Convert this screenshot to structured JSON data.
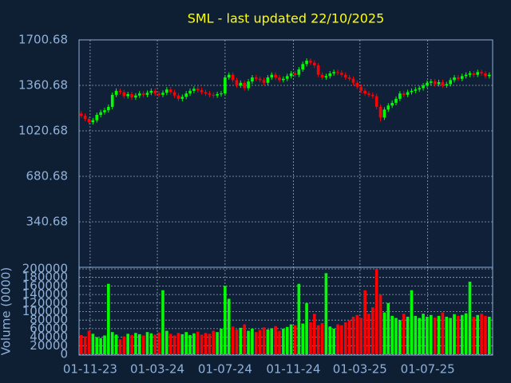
{
  "chart_data": {
    "type": "candlestick",
    "title": "SML - last updated 22/10/2025",
    "volume_label": "Volume (0000)",
    "up_color": "#00ff00",
    "down_color": "#ff0000",
    "grid": true,
    "xlim": [
      "2023-10-12",
      "2025-10-26"
    ],
    "xticks": [
      {
        "value": "2023-11-01",
        "label": "01-11-23"
      },
      {
        "value": "2024-03-01",
        "label": "01-03-24"
      },
      {
        "value": "2024-07-01",
        "label": "01-07-24"
      },
      {
        "value": "2024-11-01",
        "label": "01-11-24"
      },
      {
        "value": "2025-03-01",
        "label": "01-03-25"
      },
      {
        "value": "2025-07-01",
        "label": "01-07-25"
      }
    ],
    "ylim": [
      0.68,
      1700.68
    ],
    "yticks": [
      340.68,
      680.68,
      1020.68,
      1360.68,
      1700.68
    ],
    "volume_ylim": [
      0,
      200000
    ],
    "volume_yticks": [
      0,
      20000,
      40000,
      60000,
      80000,
      100000,
      120000,
      140000,
      160000,
      180000,
      200000
    ],
    "dates": [
      "2023-10-16",
      "2023-10-23",
      "2023-10-30",
      "2023-11-06",
      "2023-11-13",
      "2023-11-20",
      "2023-11-27",
      "2023-12-04",
      "2023-12-11",
      "2023-12-18",
      "2023-12-25",
      "2024-01-01",
      "2024-01-08",
      "2024-01-15",
      "2024-01-22",
      "2024-01-29",
      "2024-02-05",
      "2024-02-12",
      "2024-02-19",
      "2024-02-26",
      "2024-03-04",
      "2024-03-11",
      "2024-03-18",
      "2024-03-25",
      "2024-04-01",
      "2024-04-08",
      "2024-04-15",
      "2024-04-22",
      "2024-04-29",
      "2024-05-06",
      "2024-05-13",
      "2024-05-20",
      "2024-05-27",
      "2024-06-03",
      "2024-06-10",
      "2024-06-17",
      "2024-06-24",
      "2024-07-01",
      "2024-07-08",
      "2024-07-15",
      "2024-07-22",
      "2024-07-29",
      "2024-08-05",
      "2024-08-12",
      "2024-08-19",
      "2024-08-26",
      "2024-09-02",
      "2024-09-09",
      "2024-09-16",
      "2024-09-23",
      "2024-09-30",
      "2024-10-07",
      "2024-10-14",
      "2024-10-21",
      "2024-10-28",
      "2024-11-04",
      "2024-11-11",
      "2024-11-18",
      "2024-11-25",
      "2024-12-02",
      "2024-12-09",
      "2024-12-16",
      "2024-12-23",
      "2024-12-30",
      "2025-01-06",
      "2025-01-13",
      "2025-01-20",
      "2025-01-27",
      "2025-02-03",
      "2025-02-10",
      "2025-02-17",
      "2025-02-24",
      "2025-03-03",
      "2025-03-10",
      "2025-03-17",
      "2025-03-24",
      "2025-03-31",
      "2025-04-07",
      "2025-04-14",
      "2025-04-21",
      "2025-04-28",
      "2025-05-05",
      "2025-05-12",
      "2025-05-19",
      "2025-05-26",
      "2025-06-02",
      "2025-06-09",
      "2025-06-16",
      "2025-06-23",
      "2025-06-30",
      "2025-07-07",
      "2025-07-14",
      "2025-07-21",
      "2025-07-28",
      "2025-08-04",
      "2025-08-11",
      "2025-08-18",
      "2025-08-25",
      "2025-09-01",
      "2025-09-08",
      "2025-09-15",
      "2025-09-22",
      "2025-09-29",
      "2025-10-06",
      "2025-10-13",
      "2025-10-20"
    ],
    "open": [
      1150,
      1134,
      1110,
      1085,
      1100,
      1140,
      1160,
      1175,
      1200,
      1290,
      1320,
      1310,
      1280,
      1295,
      1270,
      1285,
      1300,
      1290,
      1305,
      1320,
      1300,
      1290,
      1305,
      1330,
      1310,
      1285,
      1260,
      1275,
      1300,
      1320,
      1335,
      1325,
      1310,
      1300,
      1290,
      1285,
      1295,
      1300,
      1420,
      1440,
      1400,
      1360,
      1380,
      1340,
      1390,
      1420,
      1410,
      1400,
      1380,
      1420,
      1440,
      1420,
      1400,
      1410,
      1430,
      1450,
      1440,
      1480,
      1520,
      1545,
      1530,
      1510,
      1440,
      1420,
      1430,
      1450,
      1460,
      1455,
      1440,
      1420,
      1410,
      1380,
      1350,
      1320,
      1300,
      1290,
      1280,
      1200,
      1120,
      1180,
      1210,
      1230,
      1260,
      1300,
      1290,
      1310,
      1320,
      1330,
      1340,
      1360,
      1380,
      1390,
      1370,
      1385,
      1360,
      1370,
      1400,
      1420,
      1410,
      1430,
      1440,
      1450,
      1440,
      1460,
      1450,
      1430
    ],
    "high": [
      1168,
      1152,
      1128,
      1118,
      1158,
      1178,
      1193,
      1218,
      1308,
      1338,
      1338,
      1328,
      1313,
      1313,
      1303,
      1318,
      1318,
      1323,
      1338,
      1338,
      1318,
      1323,
      1348,
      1348,
      1328,
      1303,
      1293,
      1318,
      1338,
      1353,
      1353,
      1343,
      1328,
      1318,
      1308,
      1313,
      1318,
      1438,
      1458,
      1458,
      1418,
      1398,
      1398,
      1408,
      1438,
      1438,
      1428,
      1418,
      1438,
      1458,
      1458,
      1438,
      1428,
      1448,
      1468,
      1468,
      1498,
      1538,
      1563,
      1563,
      1548,
      1528,
      1458,
      1448,
      1468,
      1478,
      1478,
      1473,
      1458,
      1438,
      1428,
      1398,
      1368,
      1338,
      1318,
      1308,
      1298,
      1218,
      1198,
      1228,
      1248,
      1278,
      1318,
      1318,
      1328,
      1338,
      1348,
      1358,
      1378,
      1398,
      1408,
      1408,
      1403,
      1403,
      1388,
      1418,
      1438,
      1438,
      1448,
      1458,
      1468,
      1468,
      1478,
      1478,
      1468,
      1458
    ],
    "low": [
      1116,
      1092,
      1067,
      1067,
      1082,
      1122,
      1142,
      1157,
      1182,
      1272,
      1292,
      1262,
      1262,
      1252,
      1252,
      1267,
      1272,
      1272,
      1287,
      1282,
      1272,
      1272,
      1287,
      1292,
      1267,
      1242,
      1242,
      1257,
      1282,
      1302,
      1307,
      1292,
      1282,
      1272,
      1267,
      1267,
      1277,
      1282,
      1402,
      1382,
      1342,
      1342,
      1322,
      1322,
      1372,
      1392,
      1382,
      1362,
      1362,
      1402,
      1402,
      1382,
      1382,
      1392,
      1412,
      1422,
      1422,
      1462,
      1502,
      1512,
      1492,
      1422,
      1402,
      1402,
      1412,
      1432,
      1437,
      1422,
      1402,
      1392,
      1362,
      1332,
      1302,
      1282,
      1272,
      1262,
      1182,
      1090,
      1102,
      1162,
      1192,
      1212,
      1242,
      1272,
      1272,
      1292,
      1302,
      1312,
      1322,
      1342,
      1362,
      1352,
      1352,
      1342,
      1342,
      1352,
      1382,
      1392,
      1392,
      1412,
      1422,
      1422,
      1422,
      1432,
      1412,
      1412
    ],
    "close": [
      1134,
      1110,
      1085,
      1100,
      1140,
      1160,
      1175,
      1200,
      1290,
      1320,
      1310,
      1280,
      1295,
      1270,
      1285,
      1300,
      1290,
      1305,
      1320,
      1300,
      1290,
      1305,
      1330,
      1310,
      1285,
      1260,
      1275,
      1300,
      1320,
      1335,
      1325,
      1310,
      1300,
      1290,
      1285,
      1295,
      1300,
      1420,
      1440,
      1400,
      1360,
      1380,
      1340,
      1390,
      1420,
      1410,
      1400,
      1380,
      1420,
      1440,
      1420,
      1400,
      1410,
      1430,
      1450,
      1440,
      1480,
      1520,
      1545,
      1530,
      1510,
      1440,
      1420,
      1430,
      1450,
      1460,
      1455,
      1440,
      1420,
      1410,
      1380,
      1350,
      1320,
      1300,
      1290,
      1280,
      1200,
      1120,
      1180,
      1210,
      1230,
      1260,
      1300,
      1290,
      1310,
      1320,
      1330,
      1340,
      1360,
      1380,
      1390,
      1370,
      1385,
      1360,
      1370,
      1400,
      1420,
      1410,
      1430,
      1440,
      1450,
      1440,
      1460,
      1450,
      1430,
      1440
    ],
    "volume": [
      45000,
      42000,
      55000,
      48000,
      40000,
      38000,
      44000,
      165000,
      52000,
      46000,
      35000,
      42000,
      48000,
      45000,
      50000,
      47000,
      44000,
      52000,
      49000,
      46000,
      51000,
      150000,
      55000,
      48000,
      44000,
      50000,
      47000,
      52000,
      45000,
      49000,
      53000,
      46000,
      50000,
      48000,
      55000,
      52000,
      60000,
      160000,
      130000,
      65000,
      58000,
      62000,
      70000,
      55000,
      60000,
      52000,
      57000,
      63000,
      58000,
      61000,
      66000,
      55000,
      60000,
      64000,
      70000,
      68000,
      165000,
      72000,
      120000,
      75000,
      95000,
      68000,
      73000,
      190000,
      65000,
      60000,
      70000,
      68000,
      75000,
      80000,
      88000,
      92000,
      85000,
      150000,
      95000,
      110000,
      200000,
      140000,
      98000,
      120000,
      90000,
      85000,
      80000,
      95000,
      88000,
      150000,
      90000,
      85000,
      95000,
      88000,
      92000,
      86000,
      90000,
      98000,
      88000,
      85000,
      94000,
      90000,
      92000,
      96000,
      170000,
      88000,
      92000,
      95000,
      90000,
      88000
    ]
  }
}
